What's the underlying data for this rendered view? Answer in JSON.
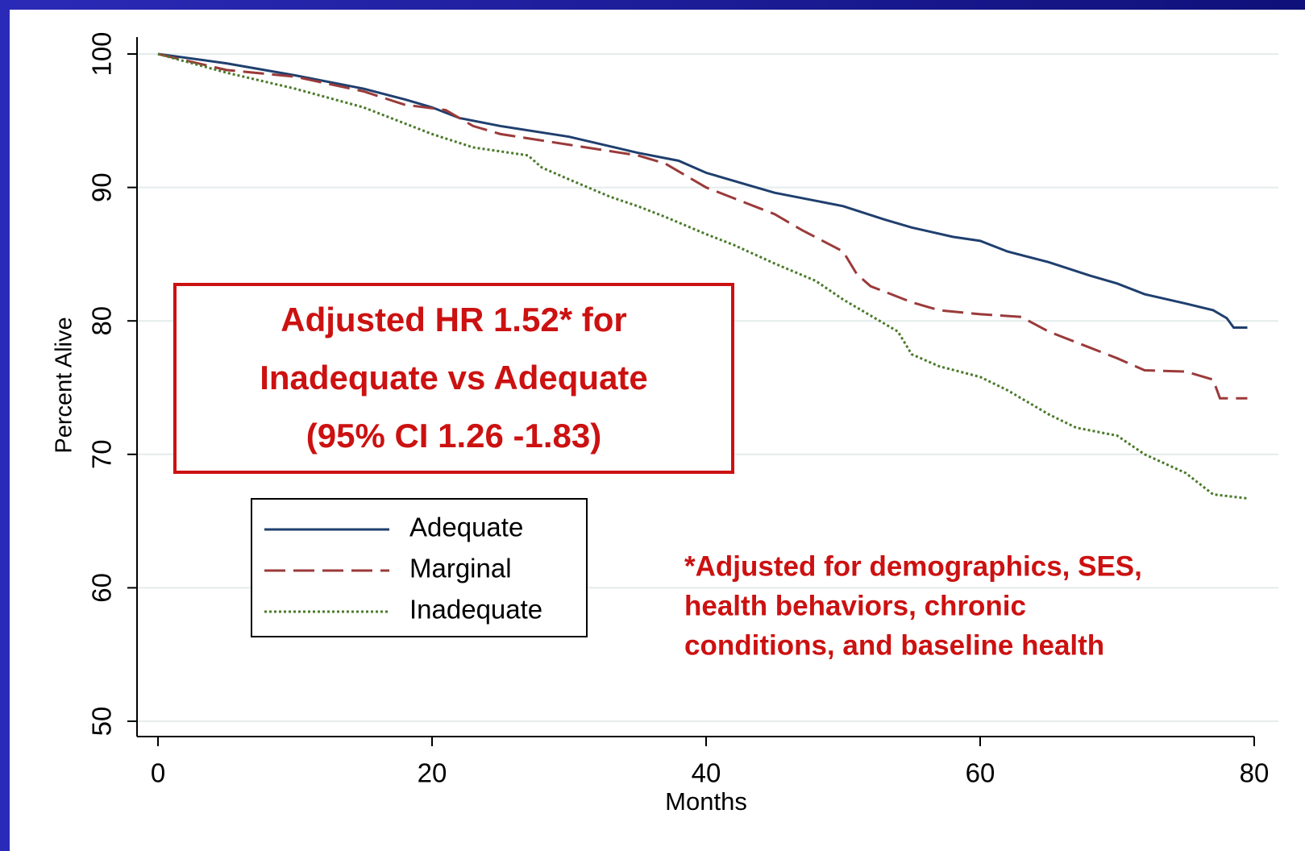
{
  "chart_data": {
    "type": "line",
    "xlabel": "Months",
    "ylabel": "Percent Alive",
    "xlim": [
      0,
      80
    ],
    "xticks": [
      0,
      20,
      40,
      60,
      80
    ],
    "ylim": [
      50,
      100
    ],
    "yticks": [
      50,
      60,
      70,
      80,
      90,
      100
    ],
    "grid": true,
    "legend_position": "lower left",
    "series": [
      {
        "name": "Adequate",
        "color": "#1f3f6e",
        "dash": "solid",
        "x": [
          0,
          5,
          10,
          15,
          18,
          20,
          22,
          25,
          30,
          35,
          38,
          40,
          43,
          45,
          50,
          53,
          55,
          58,
          60,
          62,
          65,
          68,
          70,
          72,
          75,
          77,
          78,
          78.5,
          79.5
        ],
        "values": [
          100,
          99.3,
          98.4,
          97.4,
          96.6,
          96,
          95.2,
          94.6,
          93.8,
          92.6,
          92,
          91.1,
          90.2,
          89.6,
          88.6,
          87.6,
          87,
          86.3,
          86,
          85.2,
          84.4,
          83.4,
          82.8,
          82,
          81.3,
          80.8,
          80.2,
          79.5,
          79.5
        ]
      },
      {
        "name": "Marginal",
        "color": "#9b3a3a",
        "dash": "dashed",
        "x": [
          0,
          5,
          10,
          15,
          18,
          21,
          23,
          25,
          30,
          35,
          37,
          40,
          43,
          45,
          47,
          50,
          51,
          52,
          55,
          57,
          60,
          63,
          65,
          68,
          70,
          72,
          75,
          77,
          77.5,
          79.5
        ],
        "values": [
          100,
          98.8,
          98.3,
          97.2,
          96.2,
          95.8,
          94.6,
          94,
          93.2,
          92.4,
          91.8,
          90,
          88.8,
          88,
          86.8,
          85.2,
          83.5,
          82.6,
          81.4,
          80.8,
          80.5,
          80.3,
          79.2,
          78,
          77.2,
          76.3,
          76.2,
          75.6,
          74.2,
          74.2
        ]
      },
      {
        "name": "Inadequate",
        "color": "#4a7a2a",
        "dash": "dotted",
        "x": [
          0,
          5,
          10,
          15,
          18,
          20,
          23,
          27,
          28,
          30,
          33,
          35,
          37,
          40,
          42,
          45,
          48,
          50,
          52,
          54,
          55,
          57,
          60,
          62,
          65,
          67,
          70,
          72,
          75,
          77,
          79.5
        ],
        "values": [
          100,
          98.6,
          97.4,
          96,
          94.8,
          94,
          93,
          92.4,
          91.5,
          90.6,
          89.3,
          88.6,
          87.8,
          86.5,
          85.7,
          84.3,
          83,
          81.6,
          80.4,
          79.2,
          77.5,
          76.6,
          75.8,
          74.8,
          73,
          72,
          71.4,
          70,
          68.6,
          67,
          66.7
        ]
      }
    ],
    "annotation_box": [
      "Adjusted HR 1.52* for",
      "Inadequate vs Adequate",
      "(95% CI 1.26 -1.83)"
    ],
    "footnote": [
      "*Adjusted for demographics, SES,",
      "health behaviors, chronic",
      "conditions, and baseline health"
    ]
  }
}
